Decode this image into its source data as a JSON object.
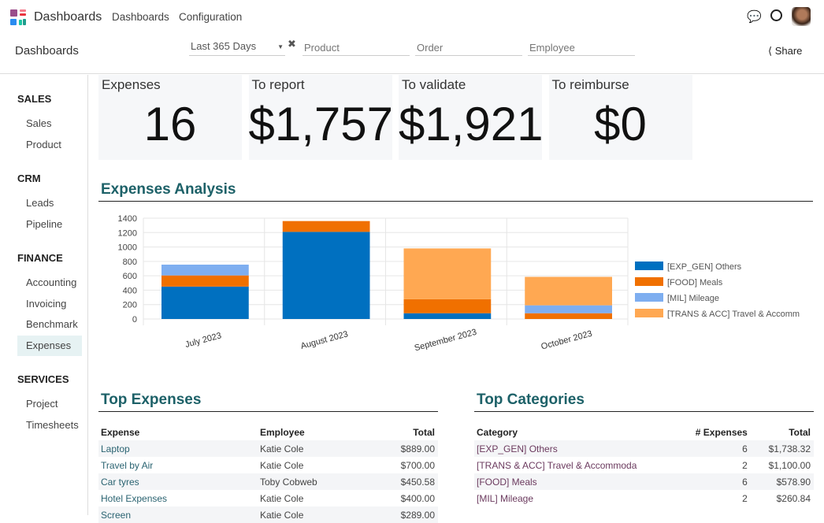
{
  "nav": {
    "app": "Dashboards",
    "menu": [
      "Dashboards",
      "Configuration"
    ]
  },
  "control": {
    "breadcrumb": "Dashboards",
    "date_filter": "Last 365 Days",
    "product_placeholder": "Product",
    "order_placeholder": "Order",
    "employee_placeholder": "Employee",
    "share": "Share"
  },
  "sidebar": [
    {
      "header": "SALES",
      "items": [
        "Sales",
        "Product"
      ]
    },
    {
      "header": "CRM",
      "items": [
        "Leads",
        "Pipeline"
      ]
    },
    {
      "header": "FINANCE",
      "items": [
        "Accounting",
        "Invoicing",
        "Benchmark",
        "Expenses"
      ]
    },
    {
      "header": "SERVICES",
      "items": [
        "Project",
        "Timesheets"
      ]
    }
  ],
  "active_item": "Expenses",
  "kpis": [
    {
      "label": "Expenses",
      "value": "16"
    },
    {
      "label": "To report",
      "value": "$1,757"
    },
    {
      "label": "To validate",
      "value": "$1,921"
    },
    {
      "label": "To reimburse",
      "value": "$0"
    }
  ],
  "analysis_title": "Expenses Analysis",
  "chart_data": {
    "type": "bar",
    "stacked": true,
    "categories": [
      "July 2023",
      "August 2023",
      "September 2023",
      "October 2023"
    ],
    "ylim": [
      0,
      1400
    ],
    "yticks": [
      0,
      200,
      400,
      600,
      800,
      1000,
      1200,
      1400
    ],
    "grid": true,
    "legend": "right",
    "series": [
      {
        "name": "[EXP_GEN] Others",
        "color": "#0070c0",
        "values": [
          450,
          1210,
          80,
          0
        ]
      },
      {
        "name": "[FOOD] Meals",
        "color": "#f07000",
        "values": [
          155,
          150,
          195,
          80
        ]
      },
      {
        "name": "[MIL] Mileage",
        "color": "#7eaef0",
        "values": [
          150,
          0,
          0,
          110
        ]
      },
      {
        "name": "[TRANS & ACC] Travel & Accommodation",
        "color": "#ffa852",
        "values": [
          0,
          0,
          705,
          395
        ]
      }
    ]
  },
  "top_expenses": {
    "title": "Top Expenses",
    "headers": [
      "Expense",
      "Employee",
      "Total"
    ],
    "rows": [
      [
        "Laptop",
        "Katie Cole",
        "$889.00"
      ],
      [
        "Travel by Air",
        "Katie Cole",
        "$700.00"
      ],
      [
        "Car tyres",
        "Toby Cobweb",
        "$450.58"
      ],
      [
        "Hotel Expenses",
        "Katie Cole",
        "$400.00"
      ],
      [
        "Screen",
        "Katie Cole",
        "$289.00"
      ]
    ]
  },
  "top_categories": {
    "title": "Top Categories",
    "headers": [
      "Category",
      "# Expenses",
      "Total"
    ],
    "rows": [
      [
        "[EXP_GEN] Others",
        "6",
        "$1,738.32"
      ],
      [
        "[TRANS & ACC] Travel & Accommoda",
        "2",
        "$1,100.00"
      ],
      [
        "[FOOD] Meals",
        "6",
        "$578.90"
      ],
      [
        "[MIL] Mileage",
        "2",
        "$260.84"
      ]
    ]
  }
}
